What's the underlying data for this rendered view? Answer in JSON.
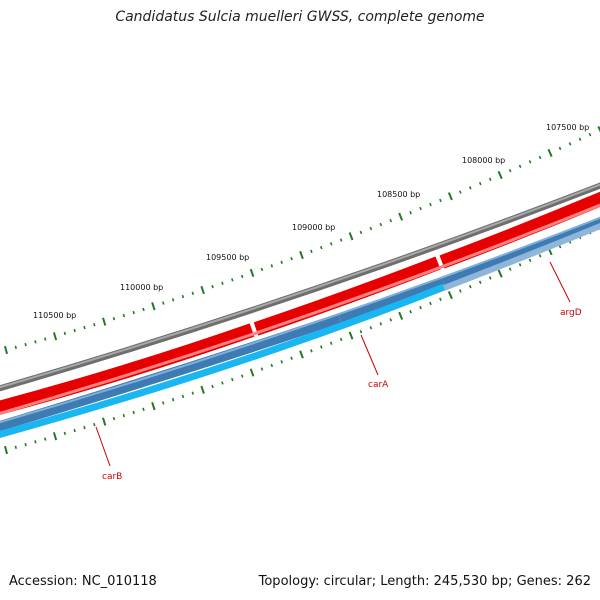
{
  "title": "Candidatus Sulcia muelleri GWSS, complete genome",
  "footer": {
    "accession_label": "Accession:",
    "accession": "NC_010118",
    "topology_label": "Topology:",
    "topology": "circular",
    "length_label": "Length:",
    "length": "245,530 bp",
    "genes_label": "Genes:",
    "genes": "262"
  },
  "ruler": {
    "tick_labels": [
      "110500 bp",
      "110000 bp",
      "109500 bp",
      "109000 bp",
      "108500 bp",
      "108000 bp",
      "107500 bp"
    ],
    "tick_color": "#227a22"
  },
  "genes": [
    {
      "name": "carB",
      "strand": "reverse"
    },
    {
      "name": "carA",
      "strand": "reverse"
    },
    {
      "name": "argD",
      "strand": "reverse"
    }
  ],
  "colors": {
    "backbone": "#808080",
    "forward_cds": "#ee0000",
    "reverse_cds": "#3f7fb8",
    "reverse_rna": "#20b8f0",
    "label": "#cc0000"
  }
}
